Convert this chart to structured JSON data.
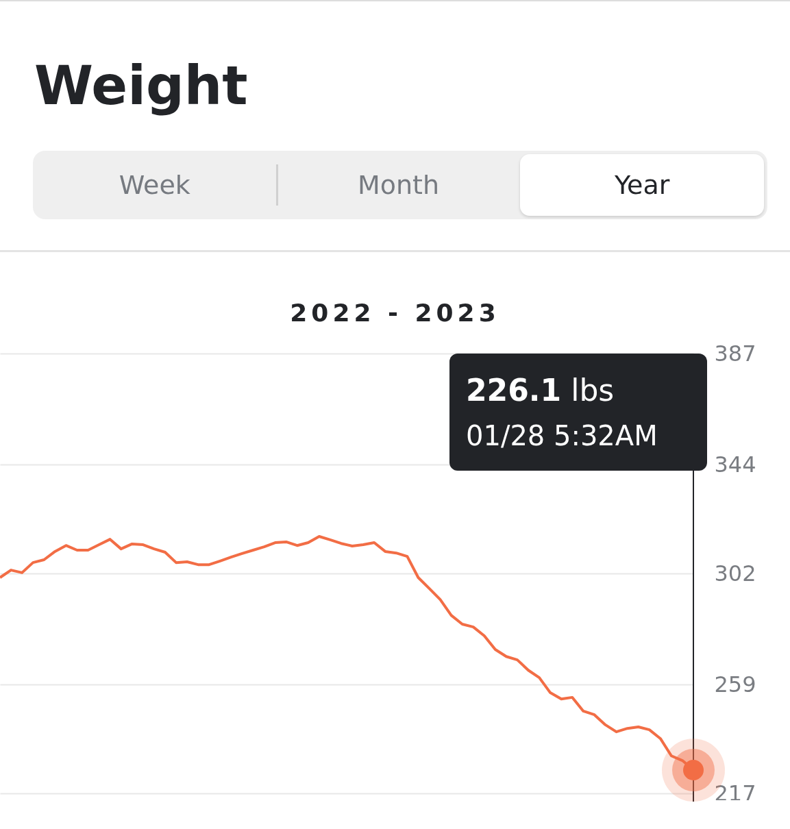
{
  "chart_data": {
    "type": "line",
    "title": "Weight",
    "subtitle": "2022 - 2023",
    "categories": [
      null,
      null,
      null,
      null,
      null,
      null,
      null,
      null,
      null,
      null,
      null,
      null,
      null,
      null,
      null,
      null,
      null,
      null,
      null,
      null,
      null,
      null,
      null,
      null,
      null,
      null,
      null,
      null,
      null,
      null,
      null,
      null,
      null,
      null,
      null,
      null,
      null,
      null,
      null,
      null,
      null,
      null,
      null,
      null,
      null,
      null,
      null,
      null,
      null,
      null,
      null,
      null,
      null,
      null,
      null,
      null,
      null,
      null,
      null,
      null,
      null,
      null,
      null,
      null
    ],
    "series": [
      {
        "color": "#f26d45",
        "values": [
          300.4,
          303.3,
          302.3,
          306.2,
          307.3,
          310.5,
          312.8,
          311.0,
          311.0,
          313.1,
          315.2,
          311.5,
          313.4,
          313.1,
          311.5,
          310.2,
          306.2,
          306.5,
          305.4,
          305.4,
          306.8,
          308.3,
          309.7,
          311.0,
          312.3,
          313.9,
          314.2,
          312.8,
          313.9,
          316.3,
          315.0,
          313.6,
          312.6,
          313.1,
          313.9,
          310.5,
          309.9,
          308.6,
          300.4,
          296.2,
          291.9,
          285.8,
          282.4,
          281.3,
          277.9,
          272.6,
          269.9,
          268.6,
          264.6,
          261.7,
          255.9,
          253.5,
          254.1,
          248.8,
          247.4,
          243.5,
          240.8,
          242.1,
          242.7,
          241.6,
          238.2,
          231.5,
          229.7,
          226.1
        ]
      }
    ],
    "ylim": [
      217,
      387
    ],
    "yticks": [
      217,
      259,
      302,
      344,
      387
    ],
    "grid": "y",
    "line_style": "solid",
    "annotations": [
      "226.1 lbs",
      "01/28 5:32AM",
      "Week",
      "Month",
      "Year"
    ]
  }
}
